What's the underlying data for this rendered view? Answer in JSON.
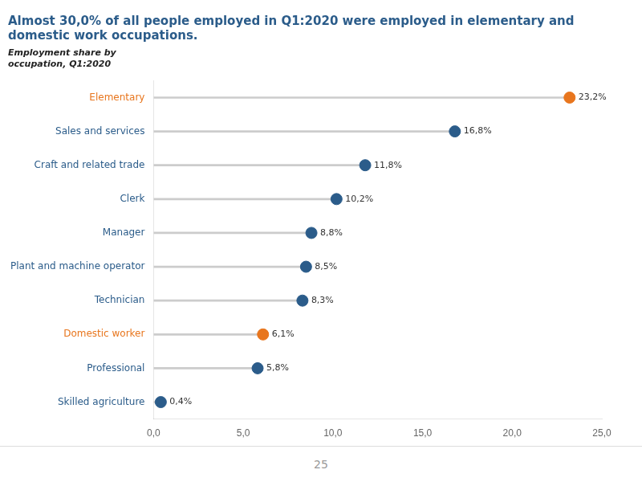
{
  "chart_data": {
    "type": "lollipop",
    "orientation": "horizontal",
    "title": [
      "Almost 30,0% of all people employed in Q1:2020 were employed in elementary and",
      "domestic work occupations."
    ],
    "subtitle": [
      "Employment share by",
      "occupation, Q1:2020"
    ],
    "categories": [
      "Elementary",
      "Sales and services",
      "Craft and related trade",
      "Clerk",
      "Manager",
      "Plant and machine operator",
      "Technician",
      "Domestic worker",
      "Professional",
      "Skilled agriculture"
    ],
    "values": [
      23.2,
      16.8,
      11.8,
      10.2,
      8.8,
      8.5,
      8.3,
      6.1,
      5.8,
      0.4
    ],
    "value_labels": [
      "23,2%",
      "16,8%",
      "11,8%",
      "10,2%",
      "8,8%",
      "8,5%",
      "8,3%",
      "6,1%",
      "5,8%",
      "0,4%"
    ],
    "data_labels": true,
    "colors": [
      "#E8761E",
      "#2B5C8A",
      "#2B5C8A",
      "#2B5C8A",
      "#2B5C8A",
      "#2B5C8A",
      "#2B5C8A",
      "#E8761E",
      "#2B5C8A",
      "#2B5C8A"
    ],
    "xlim": [
      0,
      25
    ],
    "xticks": [
      {
        "value": 0,
        "label": "0,0"
      },
      {
        "value": 5,
        "label": "5,0"
      },
      {
        "value": 10,
        "label": "10,0"
      },
      {
        "value": 15,
        "label": "15,0"
      },
      {
        "value": 20,
        "label": "20,0"
      },
      {
        "value": 25,
        "label": "25,0"
      }
    ],
    "grid": false,
    "annotations": [
      "25"
    ]
  }
}
